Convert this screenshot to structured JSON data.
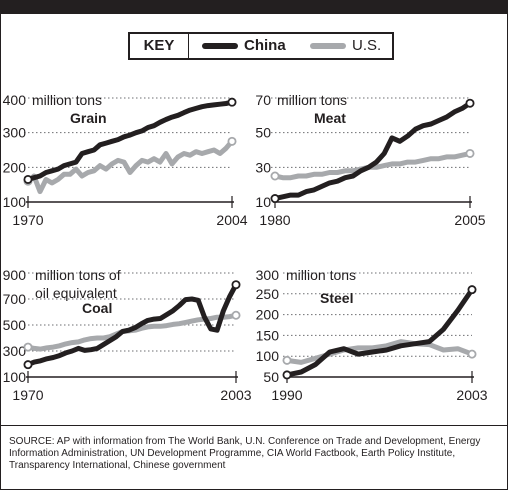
{
  "legend": {
    "title": "KEY",
    "items": [
      {
        "label": "China",
        "color": "#231f20"
      },
      {
        "label": "U.S.",
        "color": "#a7a9ac"
      }
    ]
  },
  "source": "SOURCE: AP with information from The World Bank, U.N. Conference on Trade and Development, Energy Information Administration, UN Development Programme, CIA World Factbook, Earth Policy Institute, Transparency International, Chinese government",
  "colors": {
    "china": "#231f20",
    "us": "#a7a9ac"
  },
  "chart_data": [
    {
      "type": "line",
      "title": "Grain",
      "unit_label": "million tons",
      "ylim": [
        100,
        400
      ],
      "xlim": [
        1970,
        2004
      ],
      "y_ticks": [
        100,
        200,
        300,
        400
      ],
      "y_tick_labels": [
        "100",
        "200",
        "300",
        "400"
      ],
      "x_ticks": [
        1970,
        2004
      ],
      "x_tick_labels": [
        "1970",
        "2004"
      ],
      "grid": true,
      "series": [
        {
          "name": "China",
          "x": [
            1970,
            1971,
            1972,
            1973,
            1974,
            1975,
            1976,
            1977,
            1978,
            1979,
            1980,
            1981,
            1982,
            1983,
            1984,
            1985,
            1986,
            1987,
            1988,
            1989,
            1990,
            1991,
            1992,
            1993,
            1994,
            1995,
            1996,
            1997,
            1998,
            1999,
            2000,
            2001,
            2002,
            2003,
            2004
          ],
          "values": [
            165,
            170,
            175,
            185,
            190,
            195,
            205,
            210,
            215,
            240,
            245,
            250,
            265,
            270,
            275,
            280,
            288,
            293,
            300,
            305,
            315,
            320,
            330,
            338,
            345,
            350,
            358,
            365,
            370,
            375,
            378,
            380,
            382,
            384,
            388
          ]
        },
        {
          "name": "U.S.",
          "x": [
            1970,
            1971,
            1972,
            1973,
            1974,
            1975,
            1976,
            1977,
            1978,
            1979,
            1980,
            1981,
            1982,
            1983,
            1984,
            1985,
            1986,
            1987,
            1988,
            1989,
            1990,
            1991,
            1992,
            1993,
            1994,
            1995,
            1996,
            1997,
            1998,
            1999,
            2000,
            2001,
            2002,
            2003,
            2004
          ],
          "values": [
            160,
            175,
            130,
            165,
            155,
            165,
            180,
            180,
            195,
            175,
            185,
            190,
            205,
            195,
            210,
            220,
            215,
            185,
            205,
            220,
            215,
            225,
            215,
            240,
            210,
            230,
            240,
            235,
            245,
            240,
            245,
            250,
            240,
            255,
            275
          ]
        }
      ]
    },
    {
      "type": "line",
      "title": "Meat",
      "unit_label": "million tons",
      "ylim": [
        10,
        70
      ],
      "xlim": [
        1980,
        2005
      ],
      "y_ticks": [
        10,
        30,
        50,
        70
      ],
      "y_tick_labels": [
        "10",
        "30",
        "50",
        "70"
      ],
      "x_ticks": [
        1980,
        2005
      ],
      "x_tick_labels": [
        "1980",
        "2005"
      ],
      "grid": true,
      "series": [
        {
          "name": "China",
          "x": [
            1980,
            1981,
            1982,
            1983,
            1984,
            1985,
            1986,
            1987,
            1988,
            1989,
            1990,
            1991,
            1992,
            1993,
            1994,
            1995,
            1996,
            1997,
            1998,
            1999,
            2000,
            2001,
            2002,
            2003,
            2004,
            2005
          ],
          "values": [
            12,
            13,
            14,
            14,
            16,
            17,
            19,
            21,
            22,
            24,
            25,
            28,
            30,
            33,
            38,
            47,
            45,
            48,
            52,
            54,
            55,
            57,
            59,
            62,
            64,
            67
          ]
        },
        {
          "name": "U.S.",
          "x": [
            1980,
            1981,
            1982,
            1983,
            1984,
            1985,
            1986,
            1987,
            1988,
            1989,
            1990,
            1991,
            1992,
            1993,
            1994,
            1995,
            1996,
            1997,
            1998,
            1999,
            2000,
            2001,
            2002,
            2003,
            2004,
            2005
          ],
          "values": [
            25,
            24,
            24,
            25,
            25,
            26,
            26,
            27,
            27,
            28,
            28,
            29,
            30,
            30,
            31,
            32,
            32,
            33,
            33,
            34,
            35,
            35,
            36,
            36,
            37,
            38
          ]
        }
      ]
    },
    {
      "type": "line",
      "title": "Coal",
      "unit_label": "million tons of oil equivalent",
      "ylim": [
        100,
        900
      ],
      "xlim": [
        1970,
        2003
      ],
      "y_ticks": [
        100,
        300,
        500,
        700,
        900
      ],
      "y_tick_labels": [
        "100",
        "300",
        "500",
        "700",
        "900"
      ],
      "x_ticks": [
        1970,
        2003
      ],
      "x_tick_labels": [
        "1970",
        "2003"
      ],
      "grid": true,
      "series": [
        {
          "name": "China",
          "x": [
            1970,
            1971,
            1972,
            1973,
            1974,
            1975,
            1976,
            1977,
            1978,
            1979,
            1980,
            1981,
            1982,
            1983,
            1984,
            1985,
            1986,
            1987,
            1988,
            1989,
            1990,
            1991,
            1992,
            1993,
            1994,
            1995,
            1996,
            1997,
            1998,
            1999,
            2000,
            2001,
            2002,
            2003
          ],
          "values": [
            195,
            215,
            225,
            240,
            250,
            265,
            285,
            300,
            320,
            305,
            310,
            320,
            350,
            380,
            410,
            450,
            460,
            480,
            510,
            535,
            545,
            550,
            580,
            610,
            650,
            695,
            700,
            690,
            560,
            470,
            460,
            610,
            720,
            810
          ]
        },
        {
          "name": "U.S.",
          "x": [
            1970,
            1971,
            1972,
            1973,
            1974,
            1975,
            1976,
            1977,
            1978,
            1979,
            1980,
            1981,
            1982,
            1983,
            1984,
            1985,
            1986,
            1987,
            1988,
            1989,
            1990,
            1991,
            1992,
            1993,
            1994,
            1995,
            1996,
            1997,
            1998,
            1999,
            2000,
            2001,
            2002,
            2003
          ],
          "values": [
            330,
            320,
            315,
            325,
            330,
            340,
            355,
            365,
            370,
            385,
            395,
            400,
            400,
            410,
            430,
            450,
            455,
            460,
            475,
            485,
            490,
            490,
            495,
            505,
            510,
            520,
            530,
            540,
            545,
            550,
            560,
            560,
            565,
            575
          ]
        }
      ]
    },
    {
      "type": "line",
      "title": "Steel",
      "unit_label": "million tons",
      "ylim": [
        50,
        300
      ],
      "xlim": [
        1990,
        2003
      ],
      "y_ticks": [
        50,
        100,
        150,
        200,
        250,
        300
      ],
      "y_tick_labels": [
        "50",
        "100",
        "150",
        "200",
        "250",
        "300"
      ],
      "x_ticks": [
        1990,
        2003
      ],
      "x_tick_labels": [
        "1990",
        "2003"
      ],
      "grid": true,
      "series": [
        {
          "name": "China",
          "x": [
            1990,
            1991,
            1992,
            1993,
            1994,
            1995,
            1996,
            1997,
            1998,
            1999,
            2000,
            2001,
            2002,
            2003
          ],
          "values": [
            55,
            62,
            80,
            110,
            118,
            105,
            110,
            115,
            125,
            130,
            135,
            165,
            210,
            260
          ]
        },
        {
          "name": "U.S.",
          "x": [
            1990,
            1991,
            1992,
            1993,
            1994,
            1995,
            1996,
            1997,
            1998,
            1999,
            2000,
            2001,
            2002,
            2003
          ],
          "values": [
            90,
            85,
            95,
            105,
            115,
            120,
            120,
            125,
            135,
            130,
            128,
            115,
            118,
            105
          ]
        }
      ]
    }
  ]
}
